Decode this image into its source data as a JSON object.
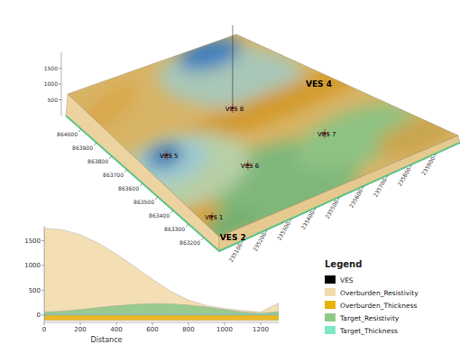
{
  "chart_data": [
    {
      "type": "surface3d",
      "xlim": [
        235000,
        236000
      ],
      "xticks": [
        235100,
        235200,
        235300,
        235400,
        235500,
        235600,
        235700,
        235800,
        235900
      ],
      "ylim": [
        863100,
        864100
      ],
      "yticks": [
        863200,
        863300,
        863400,
        863500,
        863600,
        863700,
        863800,
        863900,
        864000
      ],
      "zlim": [
        0,
        2000
      ],
      "zticks": [
        500,
        1000,
        1500
      ],
      "series": [
        {
          "name": "VES",
          "color": "#000000",
          "points": [
            {
              "name": "VES 1",
              "x": 235059,
              "y": 863240,
              "marker": "cross"
            },
            {
              "name": "VES 5",
              "x": 235126,
              "y": 863639,
              "marker": "cross"
            },
            {
              "name": "VES 6",
              "x": 235318,
              "y": 863412,
              "marker": "cross"
            },
            {
              "name": "VES 7",
              "x": 235628,
              "y": 863398,
              "marker": "cross"
            },
            {
              "name": "VES 8",
              "x": 235453,
              "y": 863724,
              "marker": "cross"
            },
            {
              "name": "VES 4",
              "x": 235748,
              "y": 863675,
              "marker": "none"
            },
            {
              "name": "VES 2",
              "x": 235034,
              "y": 863113,
              "marker": "none"
            }
          ]
        }
      ]
    },
    {
      "type": "area",
      "x_label": "Distance",
      "x": [
        0,
        100,
        200,
        300,
        400,
        500,
        600,
        700,
        800,
        900,
        1000,
        1100,
        1200,
        1300
      ],
      "xlim": [
        0,
        1300
      ],
      "xticks": [
        0,
        200,
        400,
        600,
        800,
        1000,
        1200
      ],
      "ylim": [
        -150,
        1800
      ],
      "yticks": [
        0,
        500,
        1000,
        1500
      ],
      "grid": false,
      "legend": "lower right",
      "legend_title": "Legend",
      "series": [
        {
          "name": "Overburden_Resistivity",
          "color": "#f3dcac",
          "values": [
            1750,
            1720,
            1620,
            1450,
            1230,
            980,
            720,
            480,
            300,
            190,
            130,
            90,
            60,
            240
          ]
        },
        {
          "name": "Overburden_Thickness",
          "color": "#e8b10d",
          "values": [
            -110,
            -110,
            -110,
            -110,
            -110,
            -110,
            -110,
            -110,
            -110,
            -110,
            -110,
            -110,
            -110,
            -110
          ]
        },
        {
          "name": "Target_Resistivity",
          "color": "#8fc98a",
          "values": [
            60,
            80,
            110,
            150,
            185,
            215,
            230,
            225,
            200,
            160,
            110,
            60,
            30,
            70
          ]
        },
        {
          "name": "Target_Thickness",
          "color": "#7fe8c8",
          "values": [
            25,
            25,
            25,
            25,
            25,
            25,
            25,
            25,
            25,
            25,
            25,
            25,
            25,
            25
          ]
        }
      ]
    }
  ]
}
